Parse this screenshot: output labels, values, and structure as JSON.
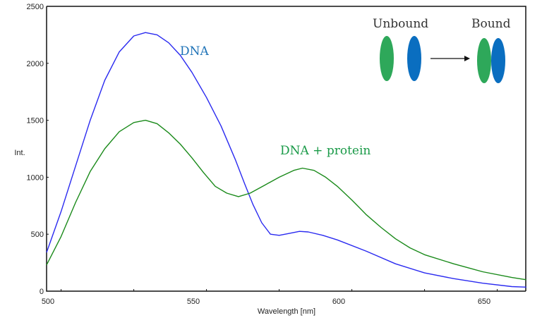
{
  "chart_data": {
    "type": "line",
    "xlabel": "Wavelength [nm]",
    "ylabel": "Int.",
    "xlim": [
      500,
      665
    ],
    "ylim": [
      0,
      2500
    ],
    "xticks": [
      500,
      550,
      600,
      650
    ],
    "yticks": [
      0,
      500,
      1000,
      1500,
      2000,
      2500
    ],
    "grid": false,
    "series": [
      {
        "name": "DNA",
        "color": "#2a2af0",
        "x": [
          500,
          505,
          510,
          515,
          520,
          525,
          530,
          534,
          538,
          542,
          546,
          550,
          555,
          560,
          565,
          568,
          571,
          574,
          577,
          580,
          583,
          587,
          590,
          595,
          600,
          610,
          620,
          630,
          640,
          650,
          660,
          665
        ],
        "y": [
          340,
          700,
          1100,
          1500,
          1850,
          2100,
          2240,
          2270,
          2250,
          2180,
          2070,
          1920,
          1700,
          1450,
          1150,
          950,
          760,
          600,
          500,
          490,
          505,
          525,
          520,
          490,
          450,
          350,
          240,
          160,
          110,
          70,
          40,
          35
        ]
      },
      {
        "name": "DNA + protein",
        "color": "#1a8a1a",
        "x": [
          500,
          505,
          510,
          515,
          520,
          525,
          530,
          534,
          538,
          542,
          546,
          550,
          554,
          558,
          562,
          566,
          570,
          575,
          580,
          585,
          588,
          592,
          596,
          600,
          605,
          610,
          615,
          620,
          625,
          630,
          640,
          650,
          660,
          665
        ],
        "y": [
          230,
          480,
          780,
          1050,
          1250,
          1400,
          1480,
          1500,
          1470,
          1390,
          1290,
          1170,
          1040,
          920,
          860,
          830,
          860,
          930,
          1000,
          1060,
          1080,
          1060,
          1000,
          920,
          800,
          670,
          560,
          460,
          380,
          320,
          240,
          170,
          120,
          100
        ]
      }
    ],
    "annotations": [
      {
        "text": "DNA",
        "color": "#1f73b7"
      },
      {
        "text": "DNA + protein",
        "color": "#1a9a48"
      }
    ],
    "inset": {
      "unbound_label": "Unbound",
      "bound_label": "Bound",
      "green_color": "#2ea85a",
      "blue_color": "#0a6ec0"
    }
  }
}
